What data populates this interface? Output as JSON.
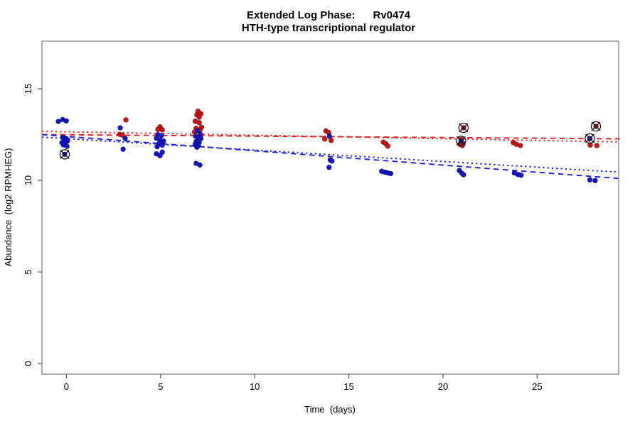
{
  "header": {
    "title_line1": "Extended Log Phase:      Rv0474",
    "title_line2": "HTH-type transcriptional regulator"
  },
  "chart_data": {
    "type": "scatter",
    "title": "Extended Log Phase: Rv0474",
    "subtitle": "HTH-type transcriptional regulator",
    "xlabel": "Time  (days)",
    "ylabel": "Abundance  (log2 RPMHEG)",
    "xlim": [
      -1.3,
      29.33
    ],
    "ylim": [
      -0.58,
      17.6
    ],
    "x_ticks": [
      0,
      5,
      10,
      15,
      20,
      25
    ],
    "y_ticks": [
      0,
      5,
      10,
      15
    ],
    "grid": false,
    "legend": "none",
    "colors": {
      "red_point": "#cd1414",
      "blue_point": "#1414cd",
      "red_line": "#ee1c1c",
      "blue_line": "#1c1cee",
      "axis_box": "#828282",
      "tick": "#555555",
      "flag_ring": "#0a0a0a"
    },
    "series": [
      {
        "name": "red-condition",
        "color_key": "red_point",
        "points": [
          [
            3.16,
            13.3
          ],
          [
            2.82,
            12.52
          ],
          [
            2.97,
            12.48
          ],
          [
            4.97,
            12.92
          ],
          [
            4.86,
            12.78
          ],
          [
            5.09,
            12.76
          ],
          [
            6.99,
            13.77
          ],
          [
            7.14,
            13.64
          ],
          [
            6.93,
            13.58
          ],
          [
            7.05,
            13.45
          ],
          [
            6.84,
            13.23
          ],
          [
            7.05,
            13.15
          ],
          [
            7.18,
            12.9
          ],
          [
            6.89,
            12.84
          ],
          [
            7.09,
            12.74
          ],
          [
            6.8,
            12.64
          ],
          [
            13.78,
            12.7
          ],
          [
            13.93,
            12.61
          ],
          [
            13.72,
            12.26
          ],
          [
            14.06,
            12.18
          ],
          [
            16.83,
            12.09
          ],
          [
            16.97,
            12.0
          ],
          [
            17.07,
            11.87
          ],
          [
            21.09,
            12.87,
            1
          ],
          [
            20.96,
            12.12
          ],
          [
            21.05,
            12.03
          ],
          [
            20.9,
            11.97
          ],
          [
            21.02,
            11.9
          ],
          [
            23.73,
            12.07
          ],
          [
            23.9,
            11.97
          ],
          [
            24.11,
            11.9
          ],
          [
            28.12,
            12.95,
            1
          ],
          [
            27.82,
            11.93
          ],
          [
            28.17,
            11.9
          ]
        ]
      },
      {
        "name": "blue-condition",
        "color_key": "blue_point",
        "points": [
          [
            -0.43,
            13.22
          ],
          [
            -0.2,
            13.32
          ],
          [
            -0.01,
            13.25
          ],
          [
            -0.2,
            12.35
          ],
          [
            -0.01,
            12.28
          ],
          [
            -0.12,
            12.22
          ],
          [
            0.06,
            12.16
          ],
          [
            -0.24,
            12.06
          ],
          [
            -0.05,
            12.03
          ],
          [
            -0.16,
            11.94
          ],
          [
            0.03,
            11.86
          ],
          [
            -0.09,
            11.42,
            1
          ],
          [
            2.86,
            12.87
          ],
          [
            3.12,
            12.29
          ],
          [
            3.01,
            11.7
          ],
          [
            4.86,
            12.5
          ],
          [
            5.05,
            12.45
          ],
          [
            4.78,
            12.3
          ],
          [
            4.97,
            12.2
          ],
          [
            5.16,
            12.15
          ],
          [
            4.9,
            12.0
          ],
          [
            5.09,
            11.92
          ],
          [
            4.82,
            11.84
          ],
          [
            5.09,
            11.54
          ],
          [
            4.78,
            11.45
          ],
          [
            4.97,
            11.35
          ],
          [
            6.96,
            12.7
          ],
          [
            7.11,
            12.51
          ],
          [
            6.86,
            12.41
          ],
          [
            7.01,
            12.35
          ],
          [
            7.14,
            12.29
          ],
          [
            6.89,
            12.12
          ],
          [
            7.05,
            12.07
          ],
          [
            6.84,
            11.97
          ],
          [
            7.01,
            11.9
          ],
          [
            6.93,
            11.81
          ],
          [
            6.89,
            10.93
          ],
          [
            7.09,
            10.84
          ],
          [
            13.97,
            12.41
          ],
          [
            14.01,
            11.12
          ],
          [
            14.1,
            11.06
          ],
          [
            13.95,
            10.71
          ],
          [
            16.74,
            10.5
          ],
          [
            16.91,
            10.45
          ],
          [
            17.06,
            10.41
          ],
          [
            17.22,
            10.37
          ],
          [
            20.96,
            12.16,
            1
          ],
          [
            20.87,
            10.54
          ],
          [
            21.0,
            10.39
          ],
          [
            21.09,
            10.31
          ],
          [
            23.79,
            10.41
          ],
          [
            23.98,
            10.32
          ],
          [
            24.15,
            10.28
          ],
          [
            27.8,
            12.29,
            1
          ],
          [
            27.8,
            10.03
          ],
          [
            28.08,
            9.99
          ]
        ]
      }
    ],
    "trend_lines": [
      {
        "name": "red-dashed-fit",
        "color_key": "red_line",
        "dash": "dashed",
        "x": [
          -1.3,
          29.4
        ],
        "y": [
          12.5,
          12.27
        ]
      },
      {
        "name": "red-dotted-fit",
        "color_key": "red_line",
        "dash": "dotted",
        "x": [
          -1.3,
          29.33
        ],
        "y": [
          12.68,
          12.1
        ]
      },
      {
        "name": "blue-dashed-fit",
        "color_key": "blue_line",
        "dash": "dashed",
        "x": [
          -1.3,
          29.4
        ],
        "y": [
          12.5,
          10.1
        ]
      },
      {
        "name": "blue-dotted-fit",
        "color_key": "blue_line",
        "dash": "dotted",
        "x": [
          -1.3,
          29.33
        ],
        "y": [
          12.36,
          10.45
        ]
      }
    ],
    "flagged_marker": "circle-cross"
  }
}
